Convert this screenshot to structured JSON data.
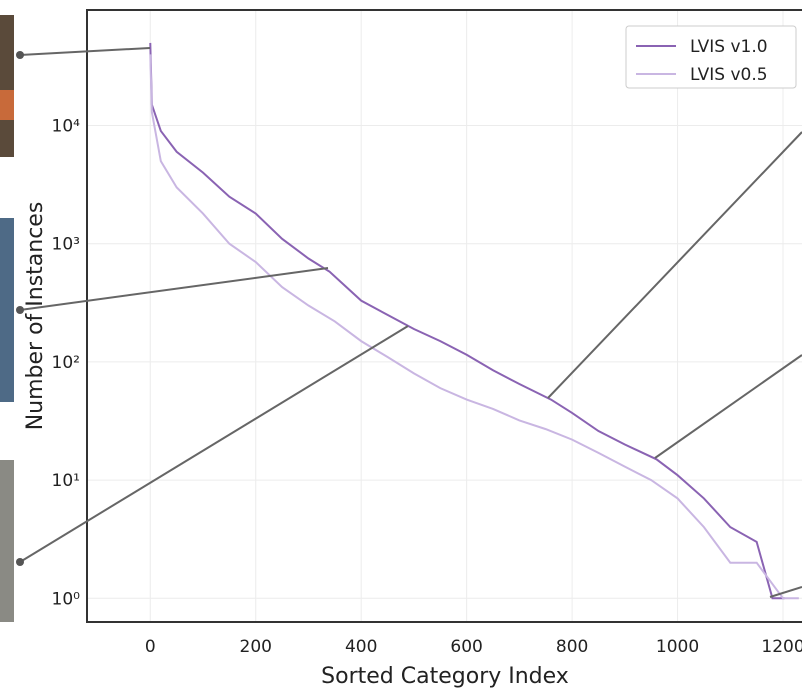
{
  "chart_data": {
    "type": "line",
    "xlabel": "Sorted Category Index",
    "ylabel": "Number of Instances",
    "xlim": [
      -120,
      1236
    ],
    "ylim": [
      0.63,
      95000
    ],
    "log_y": true,
    "grid": true,
    "legend": "upper right",
    "xticks": [
      0,
      200,
      400,
      600,
      800,
      1000,
      1200
    ],
    "yticks": [
      {
        "value": 1,
        "label": "10⁰"
      },
      {
        "value": 10,
        "label": "10¹"
      },
      {
        "value": 100,
        "label": "10²"
      },
      {
        "value": 1000,
        "label": "10³"
      },
      {
        "value": 10000,
        "label": "10⁴"
      }
    ],
    "series": [
      {
        "name": "LVIS v1.0",
        "color": "#8a63b3",
        "x": [
          0,
          3,
          20,
          50,
          100,
          150,
          200,
          250,
          300,
          340,
          400,
          450,
          500,
          550,
          600,
          650,
          700,
          760,
          800,
          850,
          900,
          960,
          1000,
          1050,
          1100,
          1150,
          1180,
          1203
        ],
        "values": [
          50000,
          15000,
          9000,
          6000,
          4000,
          2500,
          1800,
          1100,
          750,
          580,
          330,
          250,
          190,
          150,
          115,
          85,
          65,
          48,
          37,
          26,
          20,
          15,
          11,
          7,
          4,
          3,
          1,
          1
        ]
      },
      {
        "name": "LVIS v0.5",
        "color": "#c9b6e2",
        "x": [
          0,
          3,
          20,
          50,
          100,
          150,
          200,
          250,
          300,
          350,
          400,
          450,
          500,
          550,
          600,
          650,
          700,
          750,
          800,
          850,
          900,
          950,
          1000,
          1050,
          1100,
          1150,
          1200,
          1230
        ],
        "values": [
          40000,
          13000,
          5000,
          3000,
          1800,
          1000,
          700,
          430,
          300,
          220,
          150,
          110,
          80,
          60,
          48,
          40,
          32,
          27,
          22,
          17,
          13,
          10,
          7,
          4,
          2,
          2,
          1,
          1
        ]
      }
    ]
  }
}
